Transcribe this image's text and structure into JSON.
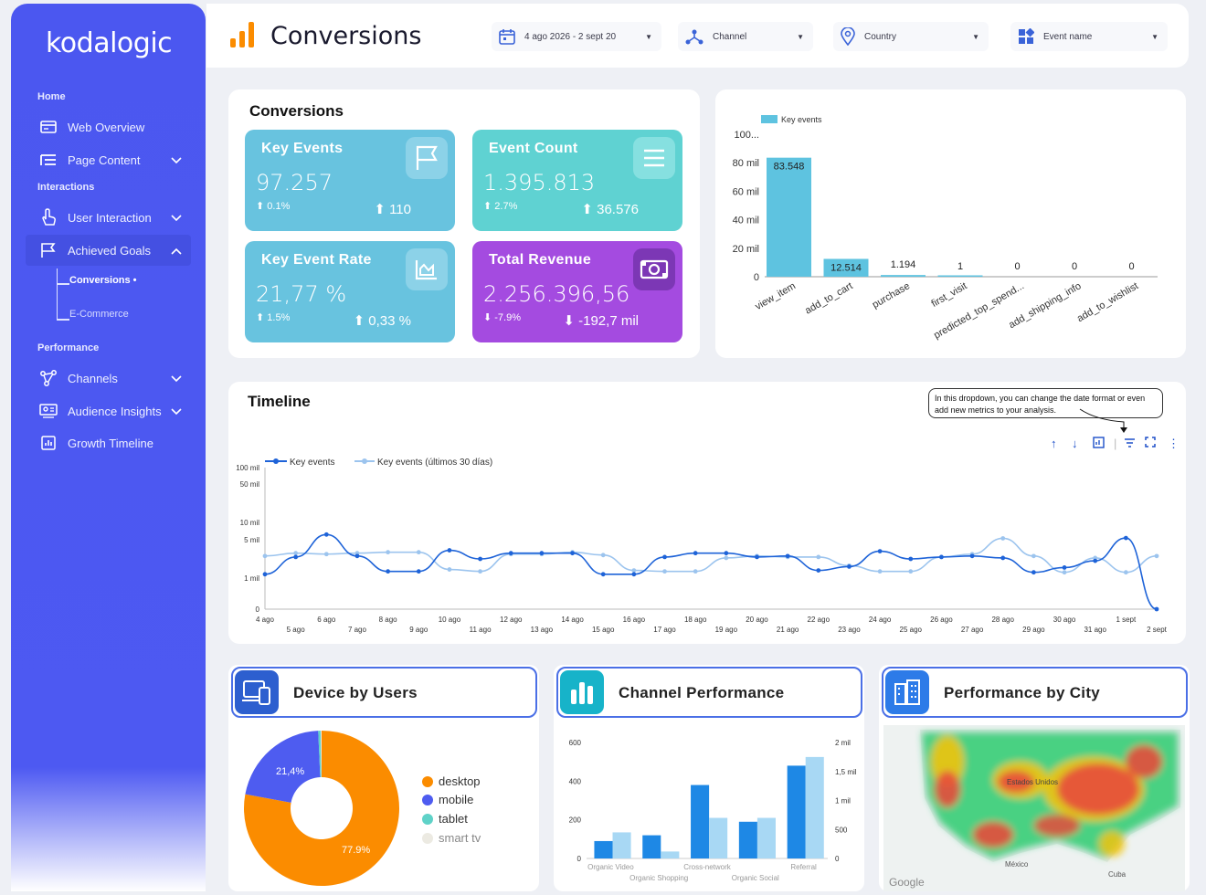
{
  "app": {
    "logo": "kodalogic"
  },
  "sidebar": {
    "sections": {
      "home": "Home",
      "interactions": "Interactions",
      "performance": "Performance"
    },
    "items": [
      {
        "label": "Web Overview"
      },
      {
        "label": "Page Content"
      },
      {
        "label": "User Interaction"
      },
      {
        "label": "Achieved Goals"
      },
      {
        "label": "Channels"
      },
      {
        "label": "Audience Insights"
      },
      {
        "label": "Growth Timeline"
      }
    ],
    "sub_items": [
      {
        "label": "Conversions •"
      },
      {
        "label": "E-Commerce"
      }
    ]
  },
  "header": {
    "title": "Conversions",
    "filters": {
      "date": "4 ago 2026 - 2 sept 20",
      "channel": "Channel",
      "country": "Country",
      "event": "Event name"
    }
  },
  "conversions": {
    "title": "Conversions",
    "kpis": [
      {
        "title": "Key Events",
        "value": "97.257",
        "delta": "⬆ 0.1%",
        "prev": "⬆ 110",
        "color": "#68c3df",
        "icon": "flag-icon"
      },
      {
        "title": "Event Count",
        "value": "1.395.813",
        "delta": "⬆ 2.7%",
        "prev": "⬆ 36.576",
        "color": "#5fd2d2",
        "icon": "list-icon"
      },
      {
        "title": "Key Event Rate",
        "value": "21,77 %",
        "delta": "⬆ 1.5%",
        "prev": "⬆ 0,33 %",
        "color": "#68c3df",
        "icon": "area-chart-icon"
      },
      {
        "title": "Total Revenue",
        "value": "2.256.396,56",
        "delta": "⬇ -7.9%",
        "prev": "⬇ -192,7 mil",
        "color": "#a44be0",
        "icon": "money-icon"
      }
    ]
  },
  "key_events_chart": {
    "legend": "Key events",
    "y_ticks": [
      "100...",
      "80 mil",
      "60 mil",
      "40 mil",
      "20 mil",
      "0"
    ],
    "categories": [
      "view_item",
      "add_to_cart",
      "purchase",
      "first_visit",
      "predicted_top_spend...",
      "add_shipping_info",
      "add_to_wishlist"
    ],
    "value_labels": [
      "83.548",
      "12.514",
      "1.194",
      "1",
      "0",
      "0",
      "0"
    ]
  },
  "timeline": {
    "title": "Timeline",
    "tooltip": "In this dropdown, you can change the date format or even add new metrics to your analysis.",
    "legend": [
      "Key events",
      "Key events (últimos 30 días)"
    ],
    "y_ticks": [
      "100 mil",
      "50 mil",
      "10 mil",
      "5 mil",
      "1 mil",
      "0"
    ],
    "x_ticks_top": [
      "4 ago",
      "6 ago",
      "8 ago",
      "10 ago",
      "12 ago",
      "14 ago",
      "16 ago",
      "18 ago",
      "20 ago",
      "22 ago",
      "24 ago",
      "26 ago",
      "28 ago",
      "30 ago",
      "1 sept"
    ],
    "x_ticks_bottom": [
      "5 ago",
      "7 ago",
      "9 ago",
      "11 ago",
      "13 ago",
      "15 ago",
      "17 ago",
      "19 ago",
      "21 ago",
      "23 ago",
      "25 ago",
      "27 ago",
      "29 ago",
      "31 ago",
      "2 sept"
    ]
  },
  "device": {
    "title": "Device by Users",
    "slices": [
      {
        "label": "desktop",
        "pct": "77.9%",
        "color": "#fb8c00"
      },
      {
        "label": "mobile",
        "pct": "21,4%",
        "color": "#4e5cf0"
      },
      {
        "label": "tablet",
        "pct": "",
        "color": "#5fd2c8"
      },
      {
        "label": "smart tv",
        "pct": "",
        "color": "#eceae2"
      }
    ]
  },
  "channel_perf": {
    "title": "Channel Performance",
    "y_left": [
      "600",
      "400",
      "200",
      "0"
    ],
    "y_right": [
      "2 mil",
      "1,5 mil",
      "1 mil",
      "500",
      "0"
    ],
    "x_top": [
      "Organic Video",
      "Cross-network",
      "Referral"
    ],
    "x_bottom": [
      "Organic Shopping",
      "Organic Social"
    ]
  },
  "city": {
    "title": "Performance by City",
    "labels": {
      "country": "Estados Unidos",
      "mexico": "México",
      "cuba": "Cuba",
      "google": "Google"
    }
  },
  "chart_data": [
    {
      "type": "bar",
      "title": "",
      "categories": [
        "view_item",
        "add_to_cart",
        "purchase",
        "first_visit",
        "predicted_top_spend...",
        "add_shipping_info",
        "add_to_wishlist"
      ],
      "series": [
        {
          "name": "Key events",
          "values": [
            83548,
            12514,
            1194,
            1,
            0,
            0,
            0
          ]
        }
      ],
      "ylim": [
        0,
        100000
      ]
    },
    {
      "type": "line",
      "title": "Timeline",
      "x": [
        "4 ago",
        "5 ago",
        "6 ago",
        "7 ago",
        "8 ago",
        "9 ago",
        "10 ago",
        "11 ago",
        "12 ago",
        "13 ago",
        "14 ago",
        "15 ago",
        "16 ago",
        "17 ago",
        "18 ago",
        "19 ago",
        "20 ago",
        "21 ago",
        "22 ago",
        "23 ago",
        "24 ago",
        "25 ago",
        "26 ago",
        "27 ago",
        "28 ago",
        "29 ago",
        "30 ago",
        "31 ago",
        "1 sept",
        "2 sept"
      ],
      "series": [
        {
          "name": "Key events",
          "values": [
            1400,
            3200,
            6500,
            3300,
            1700,
            1700,
            3900,
            3000,
            3600,
            3600,
            3600,
            1400,
            1400,
            3200,
            3600,
            3600,
            3200,
            3300,
            1800,
            2200,
            3800,
            3000,
            3200,
            3300,
            3100,
            1600,
            2100,
            2800,
            5500,
            0
          ]
        },
        {
          "name": "Key events (últimos 30 días)",
          "values": [
            3300,
            3600,
            3500,
            3600,
            3700,
            3700,
            1900,
            1700,
            3500,
            3500,
            3700,
            3400,
            1800,
            1700,
            1700,
            3100,
            3300,
            3200,
            3200,
            2300,
            1700,
            1700,
            3200,
            3500,
            5400,
            3300,
            1600,
            3100,
            1600,
            3300
          ]
        }
      ],
      "yscale": "log-like",
      "yticks": [
        "0",
        "1 mil",
        "5 mil",
        "10 mil",
        "50 mil",
        "100 mil"
      ]
    },
    {
      "type": "pie",
      "title": "Device by Users",
      "categories": [
        "desktop",
        "mobile",
        "tablet",
        "smart tv"
      ],
      "values": [
        77.9,
        21.4,
        0.5,
        0.2
      ]
    },
    {
      "type": "bar",
      "title": "Channel Performance",
      "categories": [
        "Organic Video",
        "Organic Shopping",
        "Cross-network",
        "Organic Social",
        "Referral"
      ],
      "series": [
        {
          "name": "",
          "values": [
            90,
            120,
            380,
            190,
            480
          ]
        },
        {
          "name": "",
          "values": [
            450,
            120,
            700,
            700,
            1750
          ]
        }
      ],
      "ylim": [
        0,
        600
      ],
      "y2lim": [
        0,
        2000
      ]
    }
  ]
}
